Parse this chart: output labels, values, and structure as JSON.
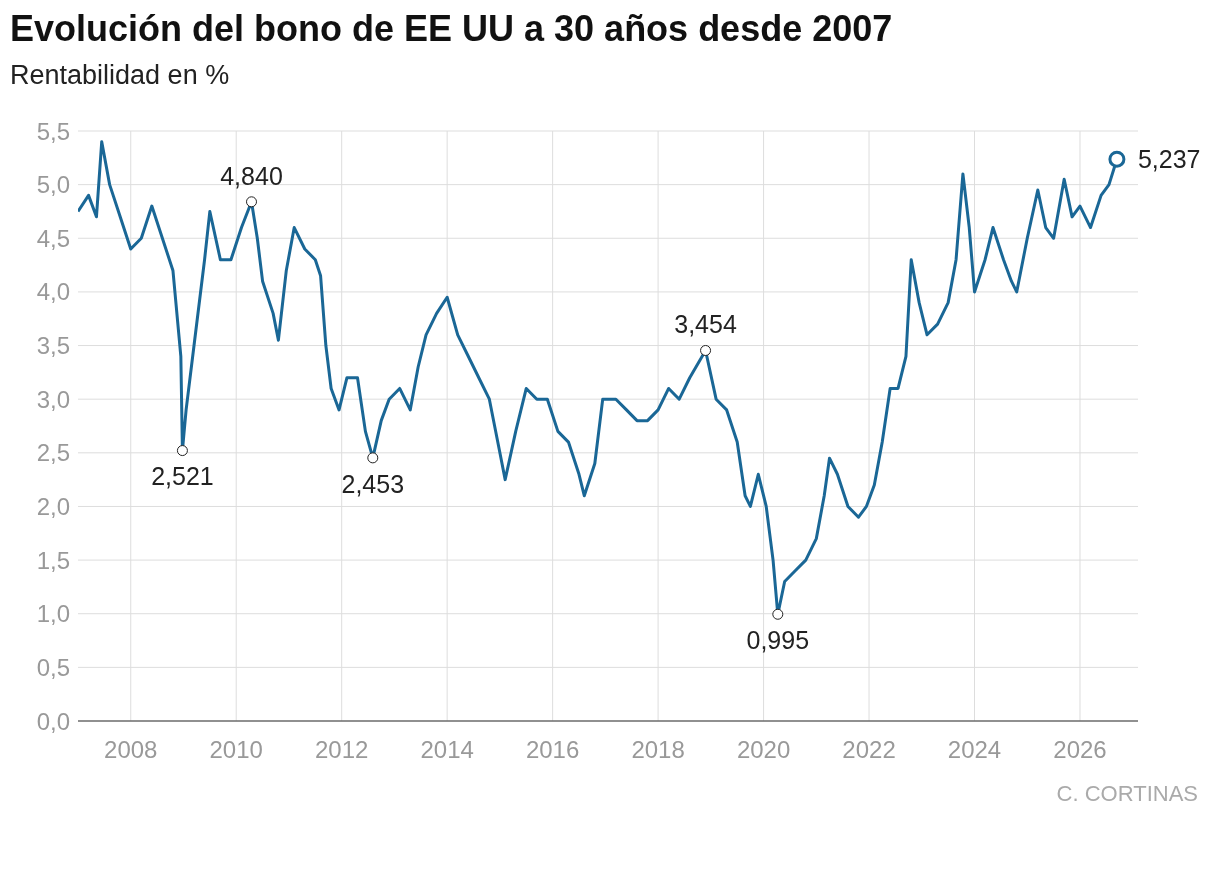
{
  "chart_data": {
    "type": "line",
    "title": "Evolución del bono de EE UU a 30 años desde 2007",
    "subtitle": "Rentabilidad en %",
    "x": [
      2007.0,
      2007.2,
      2007.35,
      2007.45,
      2007.6,
      2007.8,
      2008.0,
      2008.2,
      2008.4,
      2008.6,
      2008.8,
      2008.95,
      2008.98,
      2009.05,
      2009.2,
      2009.4,
      2009.5,
      2009.7,
      2009.9,
      2010.1,
      2010.29,
      2010.4,
      2010.5,
      2010.7,
      2010.8,
      2010.95,
      2011.1,
      2011.3,
      2011.5,
      2011.6,
      2011.7,
      2011.8,
      2011.95,
      2012.1,
      2012.3,
      2012.45,
      2012.59,
      2012.75,
      2012.9,
      2013.1,
      2013.3,
      2013.45,
      2013.6,
      2013.8,
      2014.0,
      2014.2,
      2014.4,
      2014.6,
      2014.8,
      2015.0,
      2015.1,
      2015.3,
      2015.5,
      2015.7,
      2015.9,
      2016.1,
      2016.3,
      2016.5,
      2016.6,
      2016.8,
      2016.95,
      2017.2,
      2017.4,
      2017.6,
      2017.8,
      2018.0,
      2018.2,
      2018.4,
      2018.6,
      2018.9,
      2019.1,
      2019.3,
      2019.5,
      2019.65,
      2019.75,
      2019.9,
      2020.05,
      2020.18,
      2020.27,
      2020.4,
      2020.6,
      2020.8,
      2021.0,
      2021.15,
      2021.25,
      2021.4,
      2021.6,
      2021.8,
      2021.95,
      2022.1,
      2022.25,
      2022.4,
      2022.55,
      2022.7,
      2022.8,
      2022.95,
      2023.1,
      2023.3,
      2023.5,
      2023.65,
      2023.78,
      2023.9,
      2024.0,
      2024.2,
      2024.35,
      2024.55,
      2024.7,
      2024.8,
      2025.0,
      2025.2,
      2025.35,
      2025.5,
      2025.7,
      2025.85,
      2026.0,
      2026.2,
      2026.4,
      2026.55,
      2026.7
    ],
    "series": [
      {
        "color": "#1a6796",
        "values": [
          4.75,
          4.9,
          4.7,
          5.4,
          5.0,
          4.7,
          4.4,
          4.5,
          4.8,
          4.5,
          4.2,
          3.4,
          2.521,
          2.9,
          3.5,
          4.3,
          4.75,
          4.3,
          4.3,
          4.6,
          4.84,
          4.5,
          4.1,
          3.8,
          3.55,
          4.2,
          4.6,
          4.4,
          4.3,
          4.15,
          3.5,
          3.1,
          2.9,
          3.2,
          3.2,
          2.7,
          2.453,
          2.8,
          3.0,
          3.1,
          2.9,
          3.3,
          3.6,
          3.8,
          3.95,
          3.6,
          3.4,
          3.2,
          3.0,
          2.5,
          2.25,
          2.7,
          3.1,
          3.0,
          3.0,
          2.7,
          2.6,
          2.3,
          2.1,
          2.4,
          3.0,
          3.0,
          2.9,
          2.8,
          2.8,
          2.9,
          3.1,
          3.0,
          3.2,
          3.454,
          3.0,
          2.9,
          2.6,
          2.1,
          2.0,
          2.3,
          2.0,
          1.5,
          0.995,
          1.3,
          1.4,
          1.5,
          1.7,
          2.1,
          2.45,
          2.3,
          2.0,
          1.9,
          2.0,
          2.2,
          2.6,
          3.1,
          3.1,
          3.4,
          4.3,
          3.9,
          3.6,
          3.7,
          3.9,
          4.3,
          5.1,
          4.6,
          4.0,
          4.3,
          4.6,
          4.3,
          4.1,
          4.0,
          4.5,
          4.95,
          4.6,
          4.5,
          5.05,
          4.7,
          4.8,
          4.6,
          4.9,
          5.0,
          5.237
        ]
      }
    ],
    "xlim": [
      2007,
      2027.1
    ],
    "xticks": [
      2008,
      2010,
      2012,
      2014,
      2016,
      2018,
      2020,
      2022,
      2024,
      2026
    ],
    "ylim": [
      0,
      5.5
    ],
    "yticks": [
      {
        "value": 0,
        "label": "0,0"
      },
      {
        "value": 0.5,
        "label": "0,5"
      },
      {
        "value": 1,
        "label": "1,0"
      },
      {
        "value": 1.5,
        "label": "1,5"
      },
      {
        "value": 2,
        "label": "2,0"
      },
      {
        "value": 2.5,
        "label": "2,5"
      },
      {
        "value": 3,
        "label": "3,0"
      },
      {
        "value": 3.5,
        "label": "3,5"
      },
      {
        "value": 4,
        "label": "4,0"
      },
      {
        "value": 4.5,
        "label": "4,5"
      },
      {
        "value": 5,
        "label": "5,0"
      },
      {
        "value": 5.5,
        "label": "5,5"
      }
    ],
    "grid": true,
    "marker": "none",
    "line_style": "solid",
    "annotations": [
      {
        "text": "2,521",
        "x": 2008.98,
        "y": 2.521
      },
      {
        "text": "4,840",
        "x": 2010.29,
        "y": 4.84
      },
      {
        "text": "2,453",
        "x": 2012.59,
        "y": 2.453
      },
      {
        "text": "3,454",
        "x": 2018.9,
        "y": 3.454
      },
      {
        "text": "0,995",
        "x": 2020.27,
        "y": 0.995
      },
      {
        "text": "5,237",
        "x": 2026.7,
        "y": 5.237
      },
      "C. CORTINAS"
    ]
  }
}
